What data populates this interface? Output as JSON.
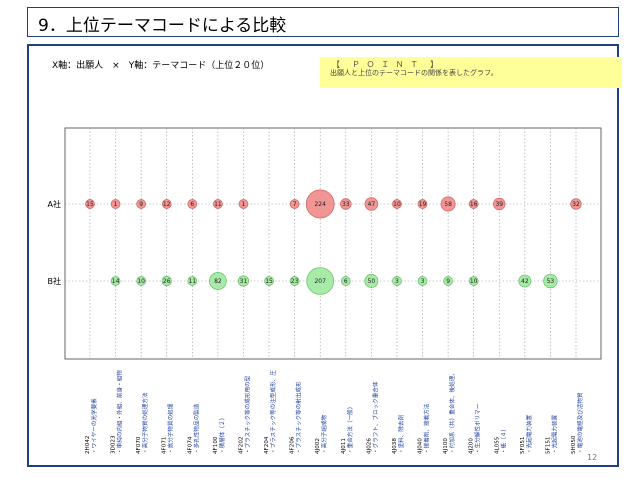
{
  "slide": {
    "title": "9．上位テーマコードによる比較",
    "axis_caption": "X軸：出願人　×　Y軸：テーマコード（上位２０位）",
    "point_title": "【　Ｐ Ｏ Ｉ Ｎ Ｔ　】",
    "point_desc": "出願人と上位のテーマコードの関係を表したグラフ。",
    "page_number": "12"
  },
  "colors": {
    "frame": "#1f3f7f",
    "point_bg": "#ffff99",
    "a_fill": "#f08a8a",
    "a_stroke": "#d06060",
    "b_fill": "#9ee89e",
    "b_stroke": "#5fbf5f",
    "grid": "#9a9a9a"
  },
  "chart_data": {
    "type": "scatter",
    "subtype": "bubble",
    "grid": true,
    "categories": [
      "2H042\n・ワイヤーの光学要素",
      "3D023\n・単純の内組・外組、前身・組物",
      "4F070\n・高分子物質の処理方法",
      "4F071\n・高分子物質の処理",
      "4F074\n・多孔性物品の製造",
      "4F100\n・積層体（２）",
      "4F202\n・プラスチック等の成形用の型",
      "4F204\n・プラスチック等の注型成形、圧",
      "4F206\n・プラスチック等の射出成形",
      "4J002\n・高分子組成物",
      "4J011\n・重合方法（一般）",
      "4J026\n・グラフト、ブロック重合体",
      "4J038\n・塗料、除去剤",
      "4J040\n・接着剤、接着方法",
      "4J100\n・付加系（共）重合体、後処理、",
      "4J200\n・生分解性ポリマー",
      "4L055\n・紙（４）",
      "5F051\n・光起電力装置",
      "5F151\n・光起電力装置",
      "5H050\n・電池の電極及び活物質"
    ],
    "series": [
      {
        "name": "A社",
        "values": [
          15,
          1,
          9,
          12,
          6,
          11,
          1,
          null,
          7,
          224,
          33,
          47,
          10,
          19,
          58,
          16,
          39,
          null,
          null,
          32
        ]
      },
      {
        "name": "B社",
        "values": [
          null,
          14,
          10,
          26,
          11,
          82,
          31,
          15,
          23,
          207,
          6,
          50,
          3,
          3,
          9,
          10,
          null,
          42,
          53,
          null
        ]
      }
    ]
  }
}
